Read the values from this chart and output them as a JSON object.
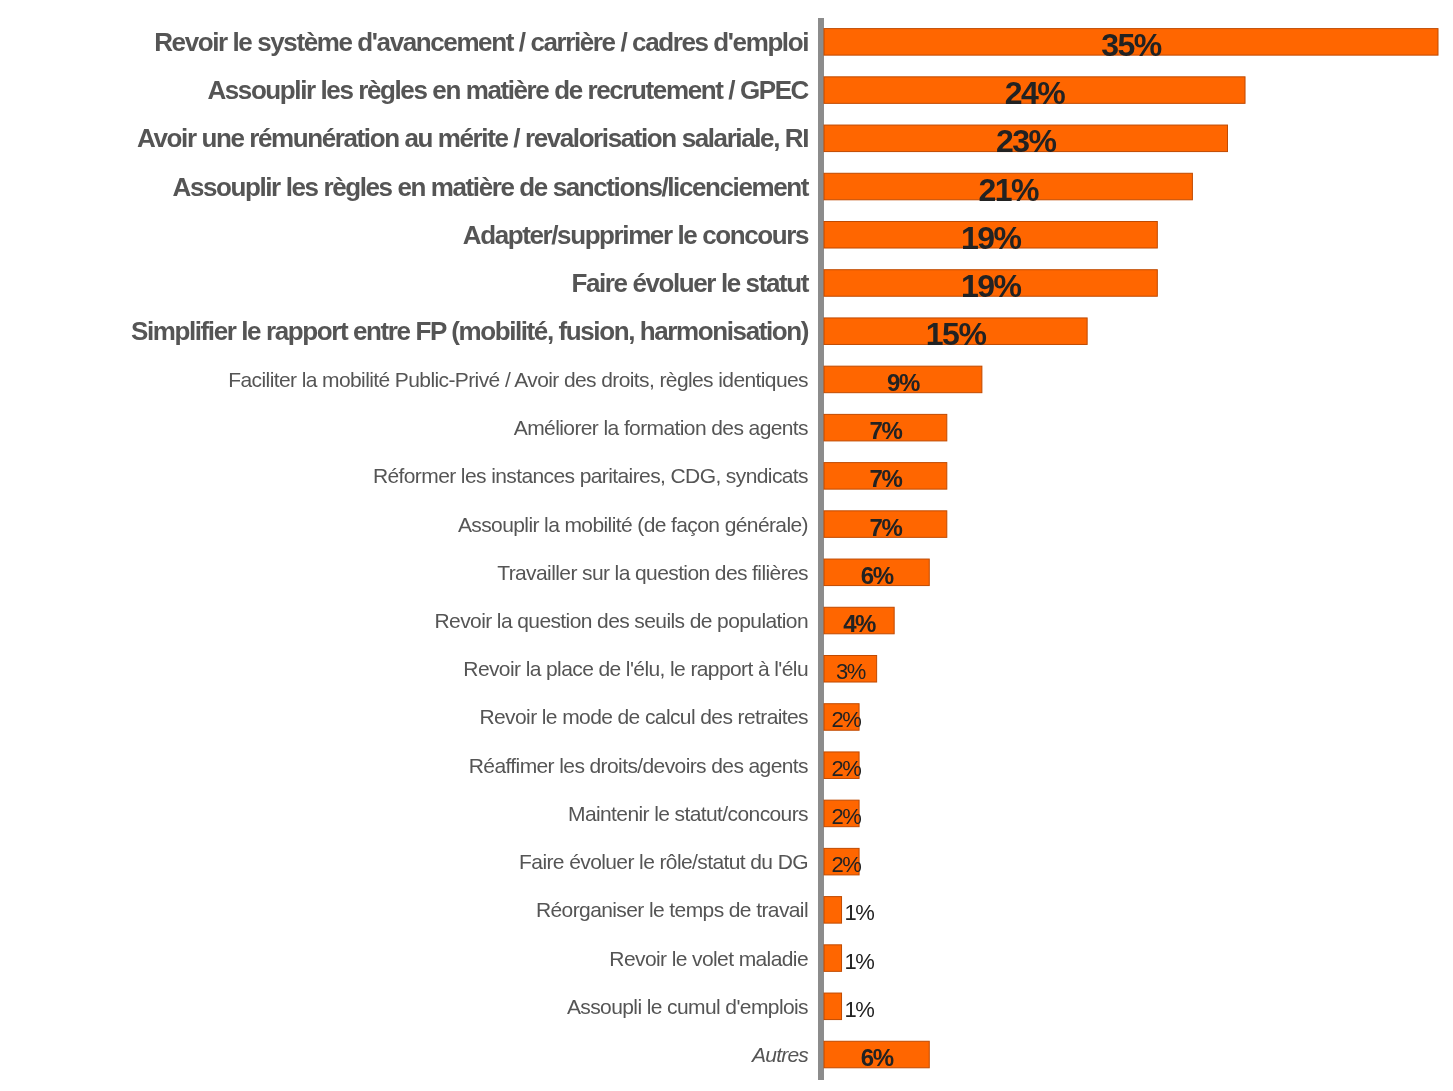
{
  "chart_data": {
    "type": "bar",
    "orientation": "horizontal",
    "color": "#ff6600",
    "categories": [
      "Revoir le système d'avancement / carrière / cadres d'emploi",
      "Assouplir les règles en matière de recrutement / GPEC",
      "Avoir une rémunération au mérite / revalorisation salariale, RI",
      "Assouplir les règles en matière de sanctions/licenciement",
      "Adapter/supprimer le concours",
      "Faire évoluer le statut",
      "Simplifier le rapport entre FP (mobilité, fusion, harmonisation)",
      "Faciliter la mobilité Public-Privé / Avoir des droits, règles identiques",
      "Améliorer la formation des agents",
      "Réformer les instances paritaires, CDG, syndicats",
      "Assouplir la mobilité (de façon générale)",
      "Travailler sur la question des filières",
      "Revoir la question des seuils de population",
      "Revoir la place de l'élu, le rapport à l'élu",
      "Revoir le mode de calcul des retraites",
      "Réaffimer les droits/devoirs des agents",
      "Maintenir le statut/concours",
      "Faire évoluer le rôle/statut du DG",
      "Réorganiser le temps de travail",
      "Revoir le volet maladie",
      "Assoupli le cumul d'emplois",
      "Autres"
    ],
    "values": [
      35,
      24,
      23,
      21,
      19,
      19,
      15,
      9,
      7,
      7,
      7,
      6,
      4,
      3,
      2,
      2,
      2,
      2,
      1,
      1,
      1,
      6
    ],
    "value_labels": [
      "35%",
      "24%",
      "23%",
      "21%",
      "19%",
      "19%",
      "15%",
      "9%",
      "7%",
      "7%",
      "7%",
      "6%",
      "4%",
      "3%",
      "2%",
      "2%",
      "2%",
      "2%",
      "1%",
      "1%",
      "1%",
      "6%"
    ],
    "data_labels": false
  }
}
